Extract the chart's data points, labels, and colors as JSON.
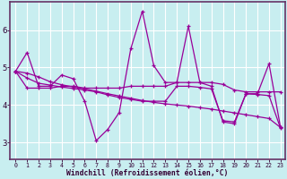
{
  "xlabel": "Windchill (Refroidissement éolien,°C)",
  "bg_color": "#c8eef0",
  "grid_color": "#ffffff",
  "line_color": "#990099",
  "axis_color": "#663366",
  "xlim_min": -0.5,
  "xlim_max": 23.4,
  "ylim_min": 2.55,
  "ylim_max": 6.75,
  "yticks": [
    3,
    4,
    5,
    6
  ],
  "xticks": [
    0,
    1,
    2,
    3,
    4,
    5,
    6,
    7,
    8,
    9,
    10,
    11,
    12,
    13,
    14,
    15,
    16,
    17,
    18,
    19,
    20,
    21,
    22,
    23
  ],
  "series0": [
    4.9,
    5.4,
    4.5,
    4.5,
    4.8,
    4.7,
    4.1,
    3.05,
    3.35,
    3.8,
    5.5,
    6.5,
    5.05,
    4.6,
    4.6,
    6.1,
    4.6,
    4.5,
    3.55,
    3.5,
    4.3,
    4.3,
    5.1,
    3.4
  ],
  "series1": [
    4.9,
    4.45,
    4.45,
    4.45,
    4.5,
    4.5,
    4.45,
    4.45,
    4.45,
    4.45,
    4.5,
    4.5,
    4.5,
    4.5,
    4.6,
    4.6,
    4.6,
    4.6,
    4.55,
    4.4,
    4.35,
    4.35,
    4.35,
    4.35
  ],
  "series2": [
    4.9,
    4.85,
    4.75,
    4.62,
    4.54,
    4.48,
    4.43,
    4.37,
    4.3,
    4.24,
    4.18,
    4.12,
    4.07,
    4.03,
    4.0,
    3.97,
    3.93,
    3.89,
    3.84,
    3.79,
    3.74,
    3.69,
    3.64,
    3.4
  ],
  "series3": [
    4.9,
    4.72,
    4.58,
    4.53,
    4.48,
    4.44,
    4.4,
    4.35,
    4.27,
    4.2,
    4.15,
    4.1,
    4.1,
    4.1,
    4.5,
    4.5,
    4.47,
    4.43,
    3.58,
    3.55,
    4.3,
    4.28,
    4.25,
    3.38
  ]
}
